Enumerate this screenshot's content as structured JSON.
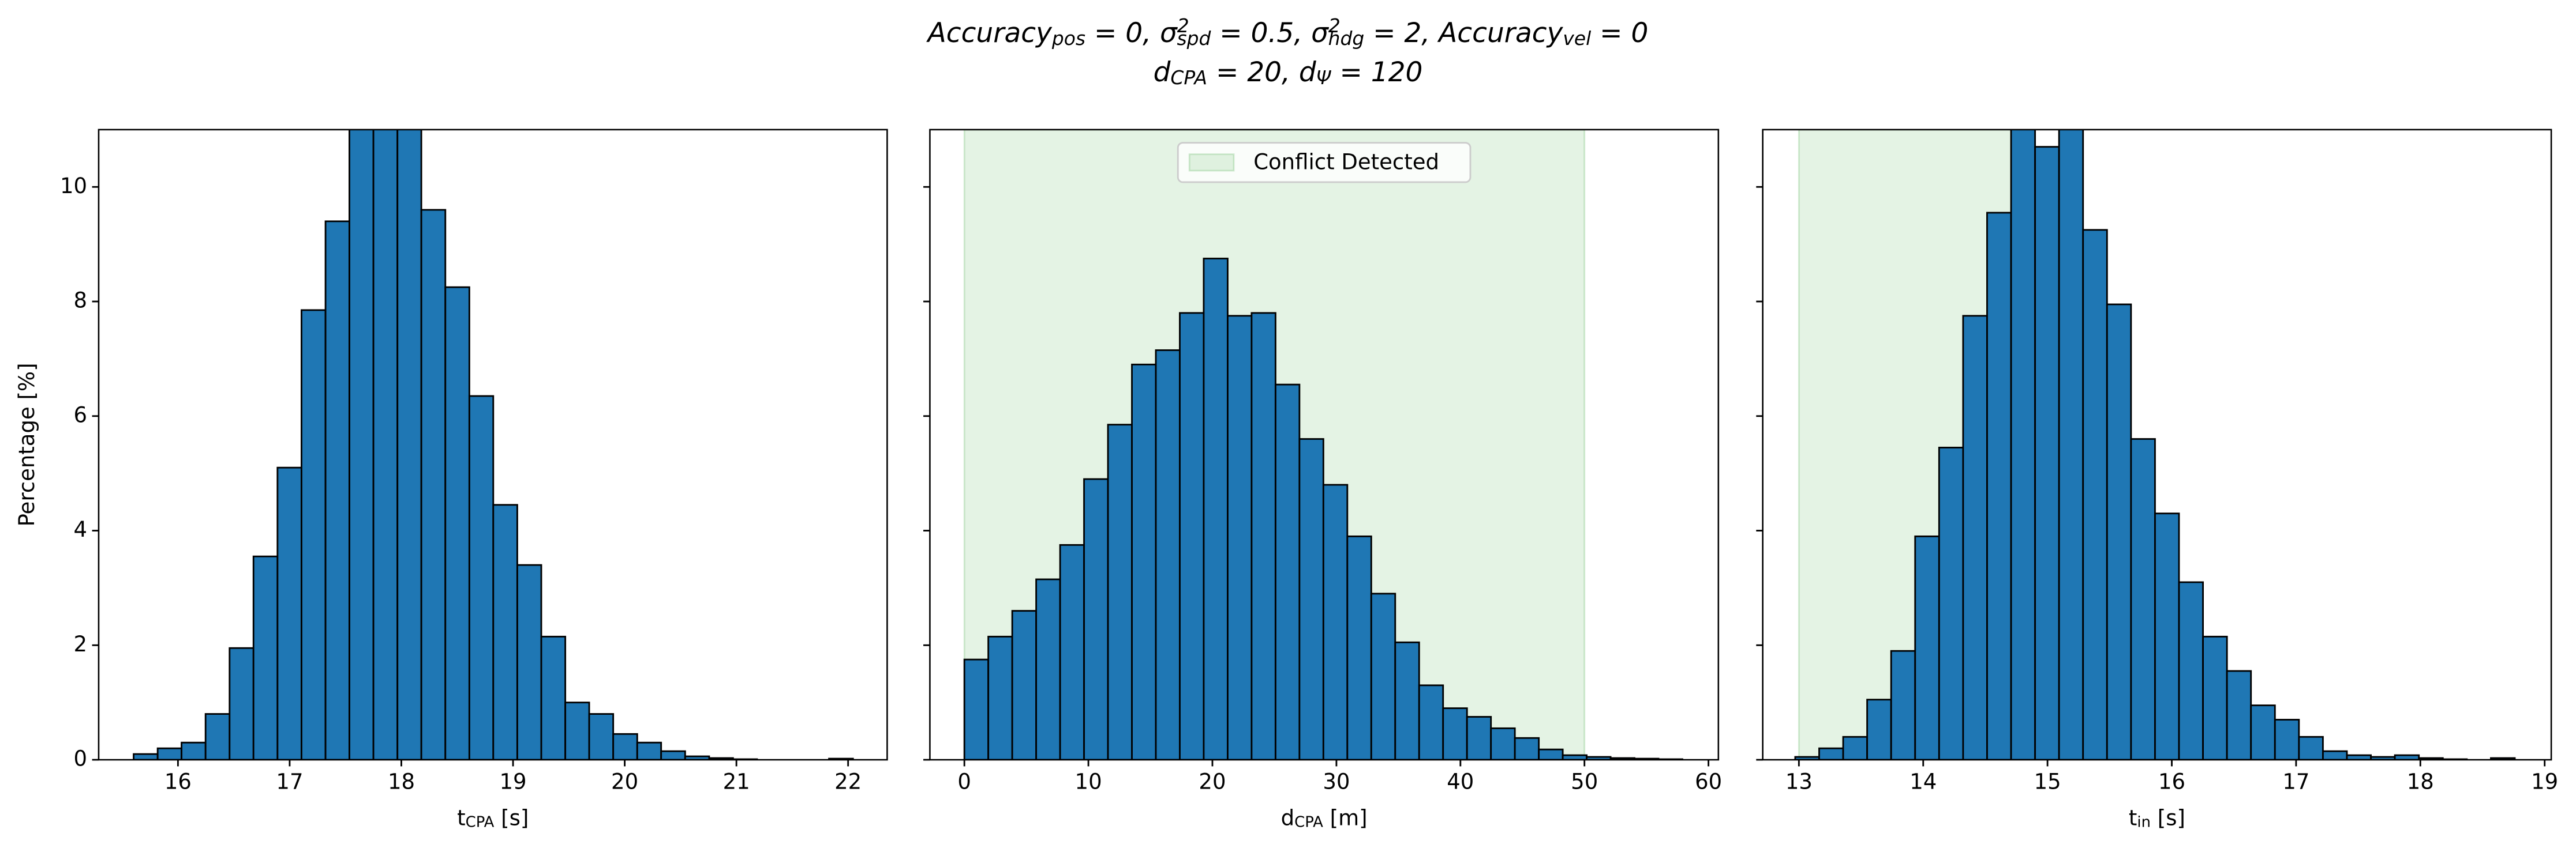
{
  "title": [
    [
      {
        "text": "Accuracy"
      },
      {
        "text": "pos",
        "pos": "sub"
      },
      {
        "text": " = 0, σ"
      },
      {
        "text": "2",
        "pos": "sup"
      },
      {
        "text": "spd",
        "pos": "sub"
      },
      {
        "text": " = 0.5, σ"
      },
      {
        "text": "2",
        "pos": "sup"
      },
      {
        "text": "hdg",
        "pos": "sub"
      },
      {
        "text": " = 2, Accuracy"
      },
      {
        "text": "vel",
        "pos": "sub"
      },
      {
        "text": " = 0"
      }
    ],
    [
      {
        "text": "d"
      },
      {
        "text": "CPA",
        "pos": "sub"
      },
      {
        "text": " = 20, d"
      },
      {
        "text": "Ψ",
        "pos": "sub"
      },
      {
        "text": " = 120"
      }
    ]
  ],
  "chart_data": [
    {
      "type": "histogram",
      "color": "#1f77b4",
      "edgecolor": "#000000",
      "xlabel": [
        {
          "text": "t"
        },
        {
          "text": "CPA",
          "pos": "sub"
        },
        {
          "text": " [s]"
        }
      ],
      "ylabel": "Percentage [%]",
      "bins": [
        15.603,
        15.818,
        16.032,
        16.247,
        16.462,
        16.676,
        16.891,
        17.106,
        17.321,
        17.535,
        17.75,
        17.965,
        18.179,
        18.394,
        18.609,
        18.823,
        19.038,
        19.253,
        19.468,
        19.682,
        19.897,
        20.112,
        20.326,
        20.541,
        20.756,
        20.97,
        21.185,
        21.4,
        21.615,
        21.829,
        22.044
      ],
      "values": [
        0.1,
        0.2,
        0.3,
        0.8,
        1.95,
        3.55,
        5.1,
        7.85,
        9.4,
        11.3,
        11.6,
        11.2,
        9.6,
        8.25,
        6.35,
        4.45,
        3.4,
        2.15,
        1.0,
        0.8,
        0.45,
        0.3,
        0.15,
        0.06,
        0.03,
        0.01,
        0,
        0,
        0,
        0.02
      ],
      "xlim": [
        15.29,
        22.35
      ],
      "xticks": [
        16,
        17,
        18,
        19,
        20,
        21,
        22
      ],
      "ylim": [
        0,
        11
      ],
      "yticks": [
        0,
        2,
        4,
        6,
        8,
        10
      ]
    },
    {
      "type": "histogram",
      "color": "#1f77b4",
      "edgecolor": "#000000",
      "xlabel": [
        {
          "text": "d"
        },
        {
          "text": "CPA",
          "pos": "sub"
        },
        {
          "text": " [m]"
        }
      ],
      "span": {
        "name": "Conflict Detected",
        "range": [
          0,
          50
        ],
        "color": "#2ca02c"
      },
      "legend": "upper center",
      "bins": [
        0,
        1.93,
        3.86,
        5.79,
        7.72,
        9.65,
        11.58,
        13.51,
        15.44,
        17.37,
        19.3,
        21.23,
        23.16,
        25.09,
        27.02,
        28.95,
        30.88,
        32.81,
        34.74,
        36.67,
        38.6,
        40.53,
        42.46,
        44.39,
        46.32,
        48.25,
        50.18,
        52.11,
        54.04,
        55.97,
        57.9
      ],
      "values": [
        1.75,
        2.15,
        2.6,
        3.15,
        3.75,
        4.9,
        5.85,
        6.9,
        7.15,
        7.8,
        8.75,
        7.75,
        7.8,
        6.55,
        5.6,
        4.8,
        3.9,
        2.9,
        2.05,
        1.3,
        0.9,
        0.75,
        0.55,
        0.38,
        0.18,
        0.08,
        0.05,
        0.03,
        0.02,
        0.01
      ],
      "xlim": [
        -2.78,
        60.8
      ],
      "xticks": [
        0,
        10,
        20,
        30,
        40,
        50,
        60
      ],
      "ylim": [
        0,
        11
      ],
      "yticks": [
        0,
        2,
        4,
        6,
        8,
        10
      ]
    },
    {
      "type": "histogram",
      "color": "#1f77b4",
      "edgecolor": "#000000",
      "xlabel": [
        {
          "text": "t"
        },
        {
          "text": "in",
          "pos": "sub"
        },
        {
          "text": " [s]"
        }
      ],
      "span": {
        "range": [
          13,
          14.76
        ],
        "color": "#2ca02c"
      },
      "bins": [
        12.97,
        13.163,
        13.356,
        13.549,
        13.742,
        13.935,
        14.128,
        14.321,
        14.514,
        14.707,
        14.9,
        15.093,
        15.286,
        15.479,
        15.672,
        15.865,
        16.058,
        16.251,
        16.444,
        16.637,
        16.83,
        17.023,
        17.216,
        17.409,
        17.602,
        17.795,
        17.988,
        18.181,
        18.374,
        18.567,
        18.76
      ],
      "values": [
        0.05,
        0.2,
        0.4,
        1.05,
        1.9,
        3.9,
        5.45,
        7.75,
        9.55,
        11.3,
        10.7,
        11.05,
        9.25,
        7.95,
        5.6,
        4.3,
        3.1,
        2.15,
        1.55,
        0.95,
        0.7,
        0.4,
        0.15,
        0.08,
        0.05,
        0.08,
        0.03,
        0.01,
        0,
        0.03
      ],
      "xlim": [
        12.709,
        19.053
      ],
      "xticks": [
        13,
        14,
        15,
        16,
        17,
        18,
        19
      ],
      "ylim": [
        0,
        11
      ],
      "yticks": [
        0,
        2,
        4,
        6,
        8,
        10
      ]
    }
  ]
}
